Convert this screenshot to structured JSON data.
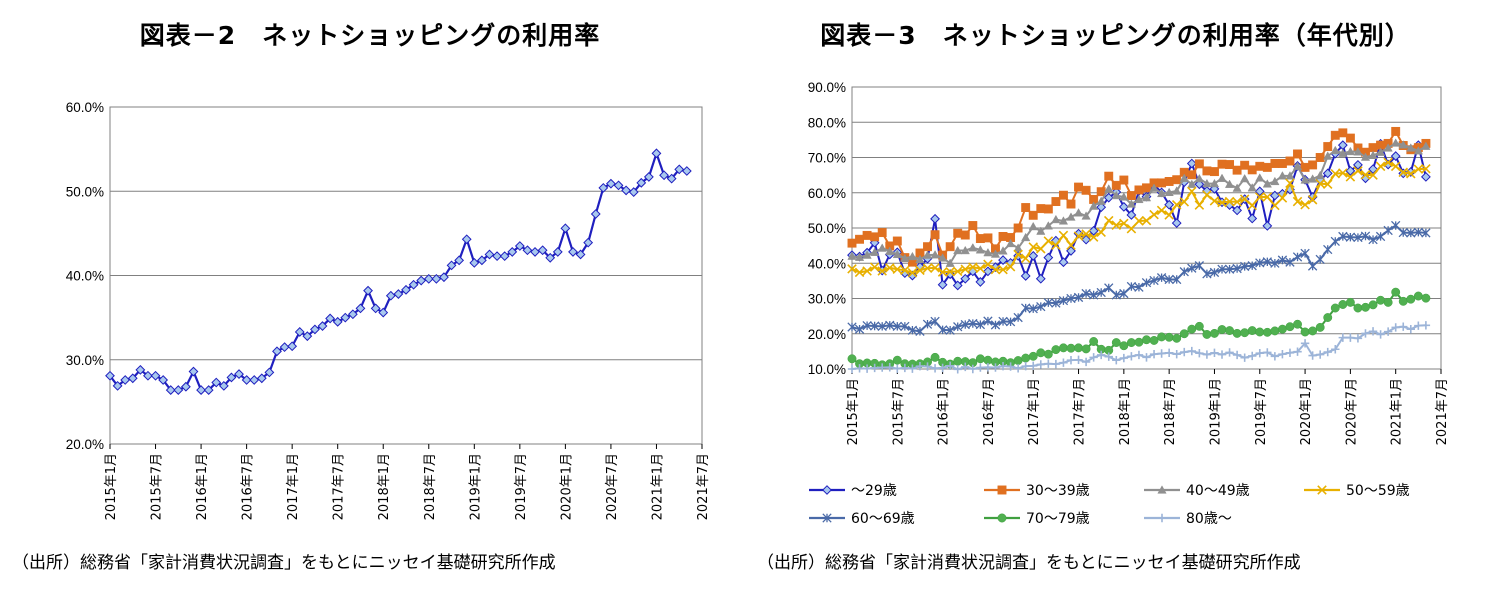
{
  "chart_data": [
    {
      "type": "line",
      "title": "図表－2　ネットショッピングの利用率",
      "source": "（出所）総務省「家計消費状況調査」をもとにニッセイ基礎研究所作成",
      "y_ticks": [
        "60.0%",
        "50.0%",
        "40.0%",
        "30.0%",
        "20.0%"
      ],
      "x_ticks": [
        "2015年1月",
        "2015年7月",
        "2016年1月",
        "2016年7月",
        "2017年1月",
        "2017年7月",
        "2018年1月",
        "2018年7月",
        "2019年1月",
        "2019年7月",
        "2020年1月",
        "2020年7月",
        "2021年1月",
        "2021年7月"
      ],
      "ylim": [
        20,
        60
      ],
      "x_start": "2015-01",
      "grid": true,
      "color": "#1f1fbf",
      "marker_fill": "#a8c8ee",
      "series": [
        {
          "values": [
            28.1,
            26.9,
            27.6,
            27.8,
            28.8,
            28.1,
            28.1,
            27.6,
            26.4,
            26.4,
            26.8,
            28.6,
            26.4,
            26.4,
            27.3,
            26.9,
            27.9,
            28.3,
            27.6,
            27.6,
            27.8,
            28.5,
            31.0,
            31.5,
            31.6,
            33.3,
            32.8,
            33.6,
            34.0,
            34.9,
            34.5,
            35.0,
            35.4,
            36.1,
            38.2,
            36.1,
            35.6,
            37.6,
            37.8,
            38.3,
            38.9,
            39.4,
            39.6,
            39.6,
            39.8,
            41.2,
            41.8,
            44.3,
            41.5,
            41.8,
            42.5,
            42.3,
            42.3,
            42.8,
            43.5,
            43.0,
            42.8,
            43.0,
            42.1,
            42.8,
            45.6,
            42.8,
            42.5,
            43.9,
            47.3,
            50.4,
            50.9,
            50.7,
            50.1,
            49.9,
            51.0,
            51.7,
            54.5,
            51.9,
            51.5,
            52.6,
            52.4
          ]
        }
      ]
    },
    {
      "type": "line",
      "title": "図表－3　ネットショッピングの利用率（年代別）",
      "source": "（出所）総務省「家計消費状況調査」をもとにニッセイ基礎研究所作成",
      "y_ticks": [
        "90.0%",
        "80.0%",
        "70.0%",
        "60.0%",
        "50.0%",
        "40.0%",
        "30.0%",
        "20.0%",
        "10.0%"
      ],
      "x_ticks": [
        "2015年1月",
        "2015年7月",
        "2016年1月",
        "2016年7月",
        "2017年1月",
        "2017年7月",
        "2018年1月",
        "2018年7月",
        "2019年1月",
        "2019年7月",
        "2020年1月",
        "2020年7月",
        "2021年1月",
        "2021年7月"
      ],
      "ylim": [
        10,
        90
      ],
      "x_start": "2015-01",
      "grid": true,
      "legend_position": "bottom",
      "series": [
        {
          "name": "～29歳",
          "color": "#1f1fbf",
          "marker": "diamond",
          "marker_fill": "#a8c8ee",
          "values": [
            42.3,
            41.9,
            43.0,
            45.8,
            37.9,
            42.5,
            43.1,
            37.2,
            36.5,
            39.0,
            41.3,
            52.6,
            33.9,
            36.9,
            33.7,
            35.6,
            37.7,
            34.7,
            37.7,
            38.9,
            40.9,
            40.1,
            42.1,
            36.4,
            42.1,
            35.6,
            41.6,
            46.4,
            40.3,
            43.5,
            48.4,
            46.7,
            49.2,
            55.9,
            58.6,
            60.2,
            56.0,
            53.7,
            60.5,
            58.9,
            62.2,
            60.1,
            56.6,
            51.4,
            63.0,
            68.3,
            62.4,
            60.5,
            61.1,
            57.3,
            56.5,
            55.0,
            58.2,
            52.7,
            60.4,
            50.6,
            59.2,
            59.7,
            60.9,
            67.6,
            63.7,
            58.8,
            63.6,
            65.5,
            71.1,
            73.5,
            66.2,
            67.9,
            64.1,
            66.7,
            73.9,
            68.0,
            70.4,
            65.5,
            65.9,
            73.5,
            64.5
          ]
        },
        {
          "name": "30～39歳",
          "color": "#e07020",
          "marker": "square",
          "marker_fill": "#e07020",
          "values": [
            45.7,
            46.8,
            47.9,
            47.5,
            48.7,
            44.9,
            46.3,
            41.6,
            40.3,
            42.9,
            44.7,
            48.1,
            42.3,
            44.7,
            48.5,
            48.0,
            50.7,
            47.0,
            47.2,
            44.1,
            47.6,
            47.3,
            50.0,
            55.8,
            53.6,
            55.5,
            55.4,
            57.5,
            59.3,
            56.8,
            61.6,
            60.7,
            58.1,
            60.3,
            64.7,
            62.1,
            63.6,
            59.2,
            60.8,
            61.4,
            62.8,
            62.8,
            63.2,
            63.7,
            65.8,
            65.1,
            68.2,
            66.2,
            66.0,
            68.1,
            68.0,
            66.4,
            67.8,
            66.5,
            67.5,
            67.2,
            68.3,
            68.3,
            69.0,
            71.0,
            67.2,
            67.9,
            70.0,
            73.1,
            76.3,
            77.0,
            75.5,
            72.7,
            71.5,
            72.8,
            73.5,
            74.0,
            77.4,
            73.4,
            72.2,
            72.8,
            74.0
          ]
        },
        {
          "name": "40～49歳",
          "color": "#909090",
          "marker": "triangle",
          "marker_fill": "#909090",
          "values": [
            42.0,
            41.7,
            42.3,
            43.1,
            44.3,
            43.4,
            42.5,
            41.4,
            41.9,
            41.1,
            42.3,
            42.4,
            41.5,
            40.0,
            43.6,
            43.6,
            44.4,
            43.8,
            43.0,
            42.6,
            43.5,
            45.6,
            44.3,
            47.3,
            50.4,
            49.1,
            50.6,
            52.4,
            52.0,
            53.1,
            54.3,
            53.4,
            56.2,
            57.6,
            61.1,
            59.2,
            58.8,
            56.8,
            58.1,
            58.6,
            61.3,
            59.8,
            60.1,
            60.5,
            64.1,
            62.4,
            64.0,
            62.6,
            62.6,
            64.1,
            62.4,
            61.3,
            64.0,
            61.4,
            64.2,
            62.5,
            63.2,
            64.8,
            64.8,
            67.5,
            63.6,
            63.9,
            64.9,
            70.4,
            72.0,
            71.2,
            71.7,
            71.6,
            70.1,
            70.6,
            71.5,
            72.7,
            74.1,
            73.6,
            72.7,
            71.9,
            73.2
          ]
        },
        {
          "name": "50～59歳",
          "color": "#e8b000",
          "marker": "x",
          "marker_fill": "#e8b000",
          "values": [
            38.4,
            37.4,
            37.8,
            38.9,
            37.8,
            38.7,
            38.3,
            38.0,
            37.3,
            38.0,
            38.6,
            38.7,
            37.5,
            37.6,
            37.7,
            38.3,
            38.9,
            38.5,
            39.7,
            38.2,
            38.2,
            39.0,
            42.5,
            41.4,
            44.6,
            44.1,
            46.3,
            45.1,
            47.9,
            45.1,
            47.7,
            48.3,
            47.4,
            48.8,
            52.1,
            50.8,
            51.3,
            49.8,
            52.0,
            52.1,
            53.8,
            55.0,
            53.7,
            56.6,
            57.4,
            60.4,
            56.5,
            59.4,
            57.7,
            57.2,
            57.5,
            57.4,
            58.2,
            56.4,
            58.8,
            58.8,
            56.4,
            58.5,
            62.7,
            57.5,
            56.6,
            58.0,
            62.6,
            62.4,
            65.4,
            65.6,
            64.5,
            66.2,
            65.1,
            65.0,
            67.5,
            68.6,
            67.5,
            65.8,
            65.4,
            66.7,
            66.8
          ]
        },
        {
          "name": "60～69歳",
          "color": "#4a6aa8",
          "marker": "star",
          "marker_fill": "#4a6aa8",
          "values": [
            21.9,
            21.3,
            22.3,
            22.2,
            22.1,
            22.4,
            22.1,
            22.1,
            21.0,
            20.7,
            22.7,
            23.5,
            21.1,
            21.0,
            22.0,
            22.6,
            22.9,
            22.6,
            23.6,
            22.5,
            23.5,
            23.4,
            24.6,
            27.3,
            27.1,
            27.7,
            28.8,
            28.7,
            29.4,
            30.0,
            30.3,
            31.4,
            31.0,
            31.7,
            33.0,
            31.0,
            31.4,
            33.4,
            33.2,
            34.5,
            35.1,
            35.9,
            35.4,
            35.4,
            37.6,
            38.6,
            39.3,
            37.0,
            37.4,
            38.3,
            38.3,
            38.5,
            39.1,
            39.3,
            40.1,
            40.4,
            40.0,
            40.9,
            40.3,
            41.8,
            42.8,
            39.2,
            41.1,
            43.9,
            46.2,
            47.6,
            47.4,
            47.3,
            47.7,
            46.7,
            47.6,
            49.3,
            50.7,
            48.7,
            48.6,
            48.8,
            48.6
          ]
        },
        {
          "name": "70～79歳",
          "color": "#40a040",
          "marker": "circle",
          "marker_fill": "#50b050",
          "values": [
            12.9,
            11.5,
            11.7,
            11.6,
            11.2,
            11.5,
            12.5,
            11.5,
            11.4,
            11.5,
            12.0,
            13.3,
            11.9,
            11.4,
            12.2,
            12.1,
            11.8,
            12.9,
            12.5,
            12.0,
            12.2,
            11.8,
            12.4,
            13.1,
            13.6,
            14.6,
            14.2,
            15.5,
            16.0,
            15.9,
            16.0,
            15.7,
            17.8,
            15.6,
            15.3,
            17.5,
            16.6,
            17.5,
            17.6,
            18.3,
            18.1,
            19.1,
            19.0,
            18.7,
            20.0,
            21.3,
            22.1,
            19.8,
            20.1,
            21.2,
            20.9,
            20.1,
            20.3,
            20.9,
            20.5,
            20.4,
            20.8,
            21.3,
            22.0,
            22.7,
            20.5,
            20.8,
            21.8,
            24.6,
            27.3,
            28.3,
            28.9,
            27.3,
            27.5,
            28.2,
            29.5,
            28.9,
            31.8,
            29.2,
            29.8,
            30.7,
            30.1
          ]
        },
        {
          "name": "80歳～",
          "color": "#9cb4d8",
          "marker": "plus",
          "marker_fill": "#9cb4d8",
          "values": [
            10.0,
            10.2,
            10.1,
            10.3,
            10.4,
            10.5,
            10.1,
            10.3,
            10.1,
            10.8,
            10.7,
            10.2,
            10.3,
            10.9,
            9.9,
            10.6,
            10.0,
            10.4,
            10.5,
            10.4,
            10.8,
            10.7,
            10.2,
            10.8,
            10.9,
            11.3,
            11.5,
            11.4,
            11.8,
            12.5,
            12.6,
            12.0,
            13.3,
            14.0,
            13.5,
            12.5,
            13.1,
            13.6,
            14.0,
            13.3,
            14.2,
            14.4,
            14.6,
            14.2,
            14.8,
            15.1,
            14.5,
            14.1,
            14.6,
            14.1,
            14.7,
            14.0,
            13.2,
            13.7,
            14.5,
            14.7,
            13.6,
            14.2,
            14.6,
            14.9,
            17.3,
            13.8,
            14.1,
            14.8,
            15.6,
            18.9,
            18.9,
            18.7,
            20.1,
            20.7,
            19.8,
            20.6,
            21.8,
            22.0,
            21.3,
            22.3,
            22.4
          ]
        }
      ]
    }
  ]
}
